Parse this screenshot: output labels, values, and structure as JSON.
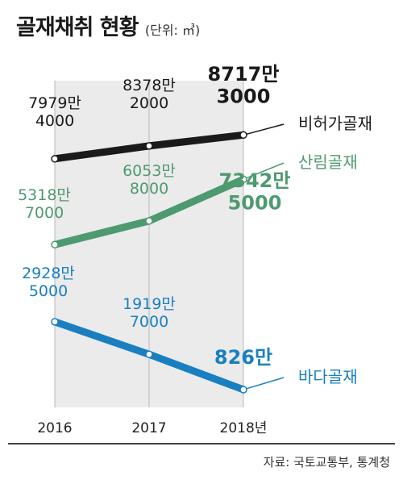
{
  "chart_data": {
    "type": "line",
    "title": "골재채취 현황",
    "unit_note": "(단위: ㎥)",
    "categories": [
      "2016",
      "2017",
      "2018년"
    ],
    "ylim": [
      0,
      100000000
    ],
    "series": [
      {
        "name": "비허가골재",
        "color": "#1a1a1a",
        "values": [
          79794000,
          83782000,
          87173000
        ],
        "labels": [
          "7979만\n4000",
          "8378만\n2000",
          "8717만\n3000"
        ]
      },
      {
        "name": "산림골재",
        "color": "#4e9a70",
        "values": [
          53187000,
          60538000,
          73425000
        ],
        "labels": [
          "5318만\n7000",
          "6053만\n8000",
          "7342만\n5000"
        ]
      },
      {
        "name": "바다골재",
        "color": "#1a7fc1",
        "values": [
          29285000,
          19197000,
          8260000
        ],
        "labels": [
          "2928만\n5000",
          "1919만\n7000",
          "826만"
        ]
      }
    ]
  },
  "source": "자료: 국토교통부, 통계청"
}
